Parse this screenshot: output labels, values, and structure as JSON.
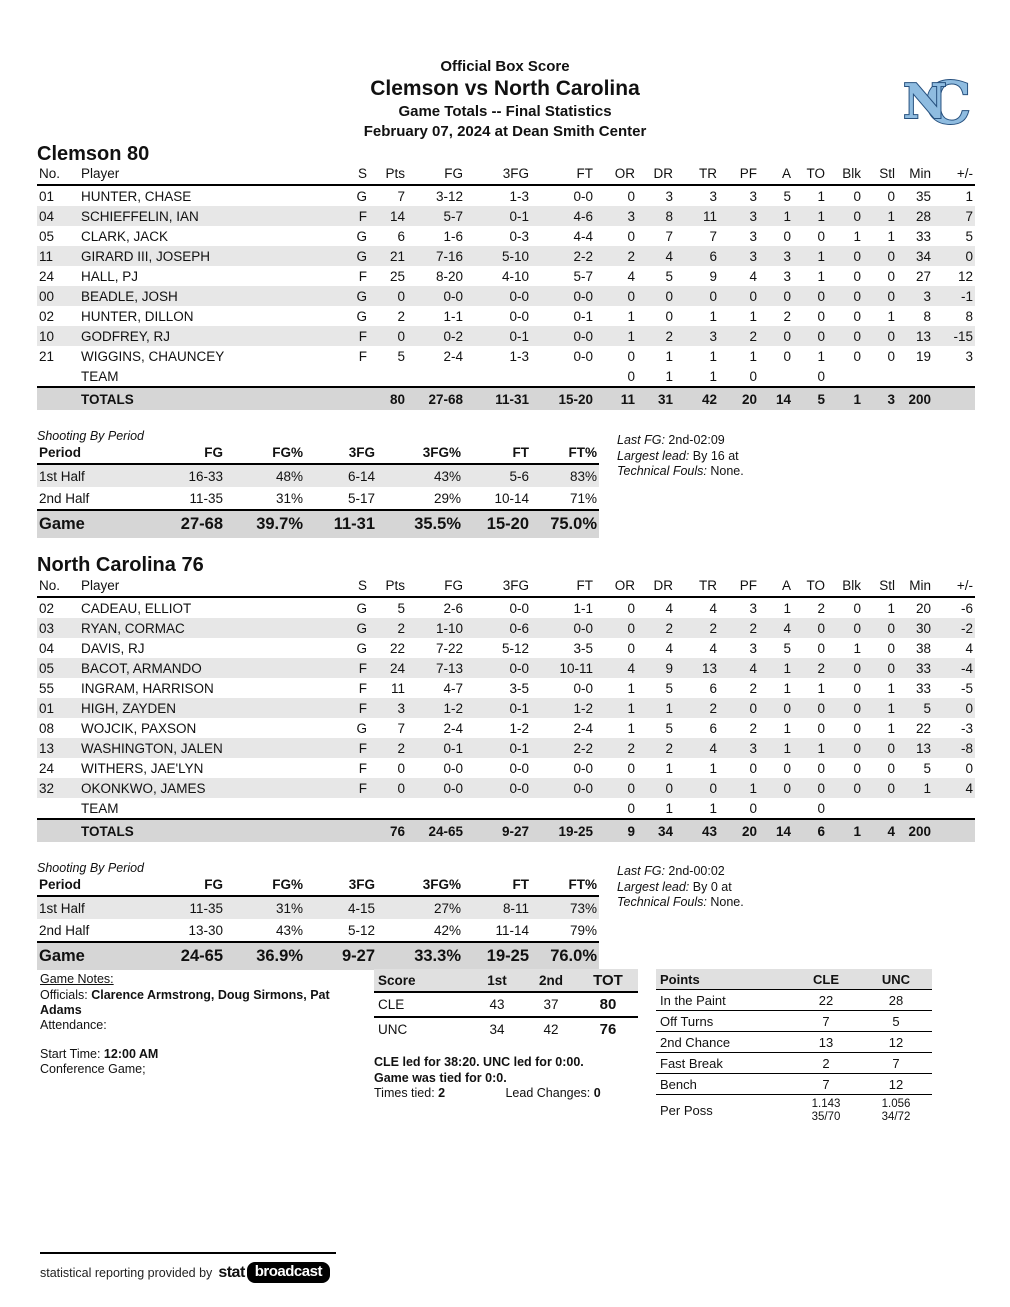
{
  "header": {
    "line1": "Official Box Score",
    "line2": "Clemson vs North Carolina",
    "line3": "Game Totals -- Final Statistics",
    "line4": "February 07, 2024 at Dean Smith Center"
  },
  "box_columns": [
    "No.",
    "Player",
    "S",
    "Pts",
    "FG",
    "3FG",
    "FT",
    "OR",
    "DR",
    "TR",
    "PF",
    "A",
    "TO",
    "Blk",
    "Stl",
    "Min",
    "+/-"
  ],
  "shooting_columns": [
    "Period",
    "FG",
    "FG%",
    "3FG",
    "3FG%",
    "FT",
    "FT%"
  ],
  "clemson": {
    "title": "Clemson 80",
    "players": [
      [
        "01",
        "HUNTER, CHASE",
        "G",
        "7",
        "3-12",
        "1-3",
        "0-0",
        "0",
        "3",
        "3",
        "3",
        "5",
        "1",
        "0",
        "0",
        "35",
        "1"
      ],
      [
        "04",
        "SCHIEFFELIN, IAN",
        "F",
        "14",
        "5-7",
        "0-1",
        "4-6",
        "3",
        "8",
        "11",
        "3",
        "1",
        "1",
        "0",
        "1",
        "28",
        "7"
      ],
      [
        "05",
        "CLARK, JACK",
        "G",
        "6",
        "1-6",
        "0-3",
        "4-4",
        "0",
        "7",
        "7",
        "3",
        "0",
        "0",
        "1",
        "1",
        "33",
        "5"
      ],
      [
        "11",
        "GIRARD III, JOSEPH",
        "G",
        "21",
        "7-16",
        "5-10",
        "2-2",
        "2",
        "4",
        "6",
        "3",
        "3",
        "1",
        "0",
        "0",
        "34",
        "0"
      ],
      [
        "24",
        "HALL, PJ",
        "F",
        "25",
        "8-20",
        "4-10",
        "5-7",
        "4",
        "5",
        "9",
        "4",
        "3",
        "1",
        "0",
        "0",
        "27",
        "12"
      ],
      [
        "00",
        "BEADLE, JOSH",
        "G",
        "0",
        "0-0",
        "0-0",
        "0-0",
        "0",
        "0",
        "0",
        "0",
        "0",
        "0",
        "0",
        "0",
        "3",
        "-1"
      ],
      [
        "02",
        "HUNTER, DILLON",
        "G",
        "2",
        "1-1",
        "0-0",
        "0-1",
        "1",
        "0",
        "1",
        "1",
        "2",
        "0",
        "0",
        "1",
        "8",
        "8"
      ],
      [
        "10",
        "GODFREY, RJ",
        "F",
        "0",
        "0-2",
        "0-1",
        "0-0",
        "1",
        "2",
        "3",
        "2",
        "0",
        "0",
        "0",
        "0",
        "13",
        "-15"
      ],
      [
        "21",
        "WIGGINS, CHAUNCEY",
        "F",
        "5",
        "2-4",
        "1-3",
        "0-0",
        "0",
        "1",
        "1",
        "1",
        "0",
        "1",
        "0",
        "0",
        "19",
        "3"
      ]
    ],
    "team_rows": [
      [
        "",
        "TEAM",
        "",
        "",
        "",
        "",
        "",
        "0",
        "1",
        "1",
        "0",
        "",
        "0",
        "",
        "",
        "",
        ""
      ]
    ],
    "totals_rows": [
      [
        "",
        "TOTALS",
        "",
        "80",
        "27-68",
        "11-31",
        "15-20",
        "11",
        "31",
        "42",
        "20",
        "14",
        "5",
        "1",
        "3",
        "200",
        ""
      ]
    ],
    "shooting_label": "Shooting By Period",
    "shooting_rows": [
      [
        "1st Half",
        "16-33",
        "48%",
        "6-14",
        "43%",
        "5-6",
        "83%"
      ],
      [
        "2nd Half",
        "11-35",
        "31%",
        "5-17",
        "29%",
        "10-14",
        "71%"
      ]
    ],
    "shooting_game_rows": [
      [
        "Game",
        "27-68",
        "39.7%",
        "11-31",
        "35.5%",
        "15-20",
        "75.0%"
      ]
    ],
    "notes": {
      "last_fg_label": "Last FG:",
      "last_fg": "2nd-02:09",
      "largest_lead_label": "Largest lead:",
      "largest_lead": "By 16 at",
      "tech_label": "Technical Fouls:",
      "tech": "None."
    }
  },
  "unc": {
    "title": "North Carolina 76",
    "players": [
      [
        "02",
        "CADEAU, ELLIOT",
        "G",
        "5",
        "2-6",
        "0-0",
        "1-1",
        "0",
        "4",
        "4",
        "3",
        "1",
        "2",
        "0",
        "1",
        "20",
        "-6"
      ],
      [
        "03",
        "RYAN, CORMAC",
        "G",
        "2",
        "1-10",
        "0-6",
        "0-0",
        "0",
        "2",
        "2",
        "2",
        "4",
        "0",
        "0",
        "0",
        "30",
        "-2"
      ],
      [
        "04",
        "DAVIS, RJ",
        "G",
        "22",
        "7-22",
        "5-12",
        "3-5",
        "0",
        "4",
        "4",
        "3",
        "5",
        "0",
        "1",
        "0",
        "38",
        "4"
      ],
      [
        "05",
        "BACOT, ARMANDO",
        "F",
        "24",
        "7-13",
        "0-0",
        "10-11",
        "4",
        "9",
        "13",
        "4",
        "1",
        "2",
        "0",
        "0",
        "33",
        "-4"
      ],
      [
        "55",
        "INGRAM, HARRISON",
        "F",
        "11",
        "4-7",
        "3-5",
        "0-0",
        "1",
        "5",
        "6",
        "2",
        "1",
        "1",
        "0",
        "1",
        "33",
        "-5"
      ],
      [
        "01",
        "HIGH, ZAYDEN",
        "F",
        "3",
        "1-2",
        "0-1",
        "1-2",
        "1",
        "1",
        "2",
        "0",
        "0",
        "0",
        "0",
        "1",
        "5",
        "0"
      ],
      [
        "08",
        "WOJCIK, PAXSON",
        "G",
        "7",
        "2-4",
        "1-2",
        "2-4",
        "1",
        "5",
        "6",
        "2",
        "1",
        "0",
        "0",
        "1",
        "22",
        "-3"
      ],
      [
        "13",
        "WASHINGTON, JALEN",
        "F",
        "2",
        "0-1",
        "0-1",
        "2-2",
        "2",
        "2",
        "4",
        "3",
        "1",
        "1",
        "0",
        "0",
        "13",
        "-8"
      ],
      [
        "24",
        "WITHERS, JAE'LYN",
        "F",
        "0",
        "0-0",
        "0-0",
        "0-0",
        "0",
        "1",
        "1",
        "0",
        "0",
        "0",
        "0",
        "0",
        "5",
        "0"
      ],
      [
        "32",
        "OKONKWO, JAMES",
        "F",
        "0",
        "0-0",
        "0-0",
        "0-0",
        "0",
        "0",
        "0",
        "1",
        "0",
        "0",
        "0",
        "0",
        "1",
        "4"
      ]
    ],
    "team_rows": [
      [
        "",
        "TEAM",
        "",
        "",
        "",
        "",
        "",
        "0",
        "1",
        "1",
        "0",
        "",
        "0",
        "",
        "",
        "",
        ""
      ]
    ],
    "totals_rows": [
      [
        "",
        "TOTALS",
        "",
        "76",
        "24-65",
        "9-27",
        "19-25",
        "9",
        "34",
        "43",
        "20",
        "14",
        "6",
        "1",
        "4",
        "200",
        ""
      ]
    ],
    "shooting_label": "Shooting By Period",
    "shooting_rows": [
      [
        "1st Half",
        "11-35",
        "31%",
        "4-15",
        "27%",
        "8-11",
        "73%"
      ],
      [
        "2nd Half",
        "13-30",
        "43%",
        "5-12",
        "42%",
        "11-14",
        "79%"
      ]
    ],
    "shooting_game_rows": [
      [
        "Game",
        "24-65",
        "36.9%",
        "9-27",
        "33.3%",
        "19-25",
        "76.0%"
      ]
    ],
    "notes": {
      "last_fg_label": "Last FG:",
      "last_fg": "2nd-00:02",
      "largest_lead_label": "Largest lead:",
      "largest_lead": "By 0 at",
      "tech_label": "Technical Fouls:",
      "tech": "None."
    }
  },
  "game_notes": {
    "title": "Game Notes:",
    "officials_label": "Officials:",
    "officials": "Clarence Armstrong, Doug Sirmons, Pat Adams",
    "attendance_label": "Attendance:",
    "start_label": "Start Time:",
    "start_time": "12:00 AM",
    "conference": "Conference Game;"
  },
  "score_table": {
    "columns": [
      "Score",
      "1st",
      "2nd",
      "TOT"
    ],
    "rows": [
      [
        "CLE",
        "43",
        "37",
        "80"
      ],
      [
        "UNC",
        "34",
        "42",
        "76"
      ]
    ]
  },
  "score_notes": {
    "line1": "CLE led for 38:20. UNC led for 0:00.",
    "line2": "Game was tied for 0:0.",
    "times_tied_label": "Times tied:",
    "times_tied": "2",
    "lead_changes_label": "Lead Changes:",
    "lead_changes": "0"
  },
  "points_table": {
    "columns": [
      "Points",
      "CLE",
      "UNC"
    ],
    "rows": [
      [
        "In the Paint",
        "22",
        "28"
      ],
      [
        "Off Turns",
        "7",
        "5"
      ],
      [
        "2nd Chance",
        "13",
        "12"
      ],
      [
        "Fast Break",
        "2",
        "7"
      ],
      [
        "Bench",
        "7",
        "12"
      ],
      [
        "Per Poss",
        "1.143\n35/70",
        "1.056\n34/72"
      ]
    ]
  },
  "footer": {
    "text": "statistical reporting provided by",
    "logo_stat": "stat",
    "logo_broadcast": "broadcast"
  },
  "colors": {
    "row_stripe": "#e7e7e7",
    "totals_bg": "#d6d6d6",
    "header_bg": "#e0e0e0",
    "unc_blue": "#8FBCE0",
    "unc_navy": "#27517F"
  }
}
